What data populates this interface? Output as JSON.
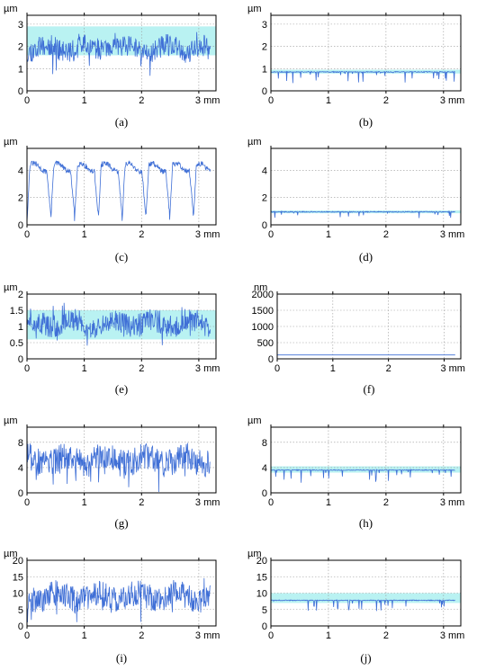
{
  "chart_data": [
    {
      "id": "a",
      "type": "line",
      "caption": "(a)",
      "yunit": "µm",
      "xunit": "mm",
      "ylim": [
        0,
        3.4
      ],
      "xlim": [
        0,
        3.3
      ],
      "yticks": [
        0,
        1,
        2,
        3
      ],
      "xticks": [
        0,
        1,
        2,
        3
      ],
      "grid": true,
      "band": [
        1.6,
        2.9
      ],
      "series": [
        {
          "pattern": "noise",
          "base": 1.9,
          "amp": 0.5,
          "seed": 11,
          "points": [
            [
              0,
              1.8
            ],
            [
              0.5,
              2.0
            ],
            [
              1.0,
              1.9
            ],
            [
              1.5,
              2.1
            ],
            [
              2.0,
              2.0
            ],
            [
              2.5,
              2.1
            ],
            [
              3.0,
              1.9
            ],
            [
              3.2,
              2.0
            ]
          ]
        }
      ]
    },
    {
      "id": "b",
      "type": "line",
      "caption": "(b)",
      "yunit": "µm",
      "xunit": "mm",
      "ylim": [
        0,
        3.4
      ],
      "xlim": [
        0,
        3.3
      ],
      "yticks": [
        0,
        1,
        2,
        3
      ],
      "xticks": [
        0,
        1,
        2,
        3
      ],
      "grid": true,
      "band": [
        0.78,
        0.95
      ],
      "series": [
        {
          "pattern": "plateau",
          "base": 0.85,
          "dips": 0.5,
          "seed": 21,
          "points": [
            [
              0,
              0.85
            ],
            [
              1.0,
              0.85
            ],
            [
              2.0,
              0.85
            ],
            [
              3.2,
              0.85
            ]
          ]
        }
      ]
    },
    {
      "id": "c",
      "type": "line",
      "caption": "(c)",
      "yunit": "µm",
      "xunit": "mm",
      "ylim": [
        0,
        5.6
      ],
      "xlim": [
        0,
        3.3
      ],
      "yticks": [
        0,
        2,
        4
      ],
      "xticks": [
        0,
        1,
        2,
        3
      ],
      "grid": true,
      "band": null,
      "series": [
        {
          "pattern": "periodic",
          "base": 4.2,
          "low": 0.3,
          "period": 0.415,
          "seed": 31,
          "points": [
            [
              0,
              0.5
            ],
            [
              0.2,
              4.2
            ],
            [
              0.4,
              0.8
            ],
            [
              0.6,
              4.4
            ],
            [
              0.8,
              0.6
            ],
            [
              1.0,
              4.3
            ],
            [
              3.2,
              4.0
            ]
          ]
        }
      ]
    },
    {
      "id": "d",
      "type": "line",
      "caption": "(d)",
      "yunit": "µm",
      "xunit": "mm",
      "ylim": [
        0,
        5.6
      ],
      "xlim": [
        0,
        3.3
      ],
      "yticks": [
        0,
        2,
        4
      ],
      "xticks": [
        0,
        1,
        2,
        3
      ],
      "grid": true,
      "band": [
        0.85,
        1.05
      ],
      "series": [
        {
          "pattern": "plateau",
          "base": 0.95,
          "dips": 0.5,
          "seed": 41,
          "points": [
            [
              0,
              0.95
            ],
            [
              1.6,
              0.95
            ],
            [
              3.2,
              0.95
            ]
          ]
        }
      ]
    },
    {
      "id": "e",
      "type": "line",
      "caption": "(e)",
      "yunit": "µm",
      "xunit": "mm",
      "ylim": [
        0,
        2
      ],
      "xlim": [
        0,
        3.3
      ],
      "yticks": [
        0,
        0.5,
        1,
        1.5,
        2
      ],
      "xticks": [
        0,
        1,
        2,
        3
      ],
      "grid": true,
      "band": [
        0.6,
        1.5
      ],
      "series": [
        {
          "pattern": "noise",
          "base": 1.1,
          "amp": 0.35,
          "seed": 51,
          "points": [
            [
              0,
              1.1
            ],
            [
              1.0,
              1.2
            ],
            [
              2.0,
              1.1
            ],
            [
              3.2,
              1.0
            ]
          ]
        }
      ]
    },
    {
      "id": "f",
      "type": "line",
      "caption": "(f)",
      "yunit": "nm",
      "xunit": "mm",
      "ylim": [
        0,
        2000
      ],
      "xlim": [
        0,
        3.3
      ],
      "yticks": [
        0,
        500,
        1000,
        1500,
        2000
      ],
      "xticks": [
        0,
        1,
        2,
        3
      ],
      "grid": true,
      "band": null,
      "series": [
        {
          "pattern": "flat",
          "base": 120,
          "dips": 0,
          "seed": 61,
          "points": [
            [
              0,
              120
            ],
            [
              1.6,
              120
            ],
            [
              3.2,
              120
            ]
          ]
        }
      ]
    },
    {
      "id": "g",
      "type": "line",
      "caption": "(g)",
      "yunit": "µm",
      "xunit": "mm",
      "ylim": [
        0,
        10.4
      ],
      "xlim": [
        0,
        3.3
      ],
      "yticks": [
        0,
        4,
        8
      ],
      "xticks": [
        0,
        1,
        2,
        3
      ],
      "grid": true,
      "band": null,
      "series": [
        {
          "pattern": "noise",
          "base": 5.2,
          "amp": 2.2,
          "seed": 71,
          "points": [
            [
              0,
              5.0
            ],
            [
              1.0,
              5.5
            ],
            [
              2.0,
              5.2
            ],
            [
              3.2,
              4.8
            ]
          ]
        }
      ]
    },
    {
      "id": "h",
      "type": "line",
      "caption": "(h)",
      "yunit": "µm",
      "xunit": "mm",
      "ylim": [
        0,
        10.4
      ],
      "xlim": [
        0,
        3.3
      ],
      "yticks": [
        0,
        4,
        8
      ],
      "xticks": [
        0,
        1,
        2,
        3
      ],
      "grid": true,
      "band": [
        3.2,
        4.2
      ],
      "series": [
        {
          "pattern": "plateau",
          "base": 3.6,
          "dips": 2.0,
          "seed": 81,
          "points": [
            [
              0,
              3.6
            ],
            [
              1.6,
              3.6
            ],
            [
              3.2,
              3.6
            ]
          ]
        }
      ]
    },
    {
      "id": "i",
      "type": "line",
      "caption": "(i)",
      "yunit": "µm",
      "xunit": "mm",
      "ylim": [
        0,
        20
      ],
      "xlim": [
        0,
        3.3
      ],
      "yticks": [
        0,
        5,
        10,
        15,
        20
      ],
      "xticks": [
        0,
        1,
        2,
        3
      ],
      "grid": true,
      "band": null,
      "series": [
        {
          "pattern": "noise",
          "base": 9,
          "amp": 4,
          "seed": 91,
          "points": [
            [
              0,
              9
            ],
            [
              0.7,
              11
            ],
            [
              1.5,
              9
            ],
            [
              2.0,
              10
            ],
            [
              3.2,
              8
            ]
          ]
        }
      ]
    },
    {
      "id": "j",
      "type": "line",
      "caption": "(j)",
      "yunit": "µm",
      "xunit": "mm",
      "ylim": [
        0,
        20
      ],
      "xlim": [
        0,
        3.3
      ],
      "yticks": [
        0,
        5,
        10,
        15,
        20
      ],
      "xticks": [
        0,
        1,
        2,
        3
      ],
      "grid": true,
      "band": [
        7,
        10
      ],
      "series": [
        {
          "pattern": "plateau",
          "base": 7.8,
          "dips": 3.5,
          "seed": 101,
          "points": [
            [
              0,
              7.8
            ],
            [
              1.6,
              7.8
            ],
            [
              3.2,
              7.8
            ]
          ]
        }
      ]
    }
  ],
  "colors": {
    "line": "#3f6fd6",
    "band": "#b9f2f2",
    "spike": "#b04ad8",
    "grid": "#9a9a9a"
  }
}
